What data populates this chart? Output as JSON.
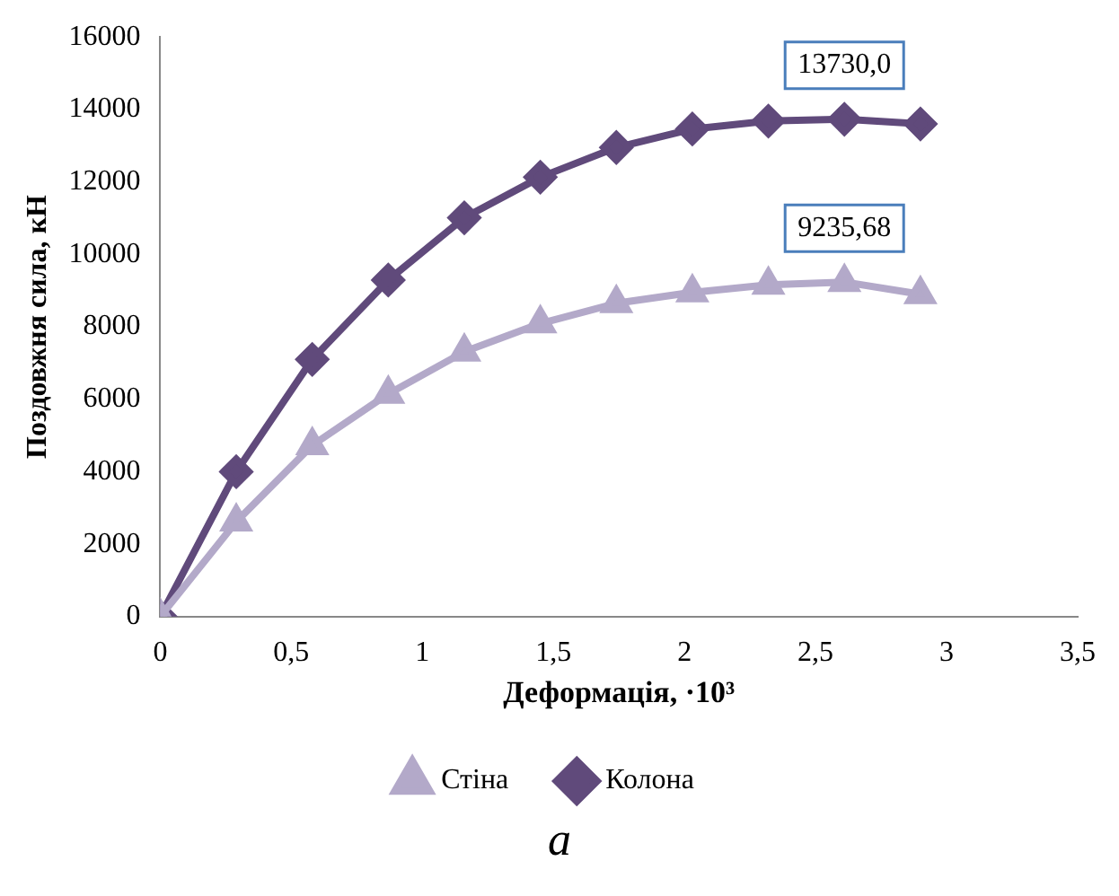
{
  "chart_data": {
    "type": "line",
    "xlabel": "Деформація, ·10³",
    "ylabel": "Поздовжня сила, кН",
    "xlim": [
      0,
      3.5
    ],
    "xticks": [
      0,
      {
        "value": 0.5,
        "label": "0,5"
      },
      1,
      {
        "value": 1.5,
        "label": "1,5"
      },
      2,
      {
        "value": 2.5,
        "label": "2,5"
      },
      3,
      {
        "value": 3.5,
        "label": "3,5"
      }
    ],
    "ylim": [
      0,
      16000
    ],
    "yticks": [
      0,
      2000,
      4000,
      6000,
      8000,
      10000,
      12000,
      14000,
      16000
    ],
    "x": [
      0,
      0.29,
      0.58,
      0.87,
      1.16,
      1.45,
      1.74,
      2.03,
      2.32,
      2.61,
      2.9
    ],
    "series": [
      {
        "name": "Стіна",
        "color": "#b3a9c9",
        "marker": "triangle",
        "values": [
          0,
          2620,
          4730,
          6150,
          7310,
          8090,
          8650,
          8950,
          9160,
          9235,
          8900
        ]
      },
      {
        "name": "Колона",
        "color": "#604a7b",
        "marker": "diamond",
        "values": [
          0,
          4000,
          7100,
          9290,
          11010,
          12130,
          12950,
          13460,
          13680,
          13730,
          13600
        ]
      }
    ],
    "annotations": [
      {
        "text": "13730,0",
        "x": 2.61,
        "y": 13730
      },
      {
        "text": "9235,68",
        "x": 2.61,
        "y": 9235
      },
      "а"
    ],
    "grid": false,
    "legend": "bottom",
    "line_style": "solid"
  }
}
